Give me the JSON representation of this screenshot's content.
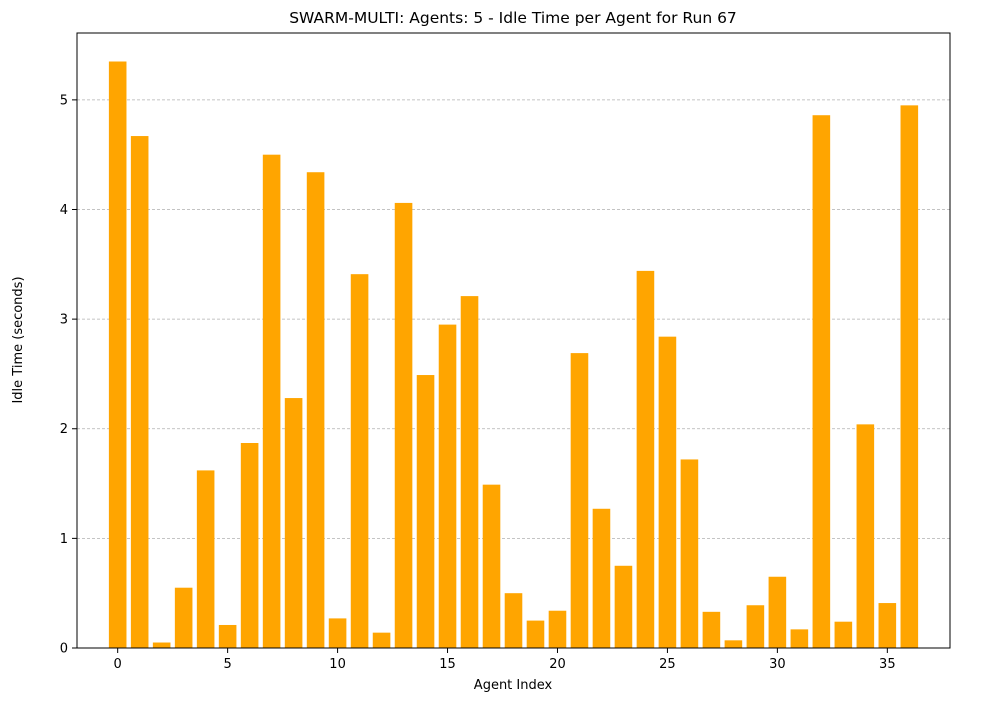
{
  "chart_data": {
    "type": "bar",
    "title": "SWARM-MULTI: Agents: 5 - Idle Time per Agent for Run 67",
    "xlabel": "Agent Index",
    "ylabel": "Idle Time (seconds)",
    "x_ticks": [
      0,
      5,
      10,
      15,
      20,
      25,
      30,
      35
    ],
    "y_ticks": [
      0,
      1,
      2,
      3,
      4,
      5
    ],
    "xlim": [
      -1.85,
      37.85
    ],
    "ylim": [
      0,
      5.61
    ],
    "grid": "y-axis dashed",
    "bar_color": "#ffa500",
    "categories": [
      0,
      1,
      2,
      3,
      4,
      5,
      6,
      7,
      8,
      9,
      10,
      11,
      12,
      13,
      14,
      15,
      16,
      17,
      18,
      19,
      20,
      21,
      22,
      23,
      24,
      25,
      26,
      27,
      28,
      29,
      30,
      31,
      32,
      33,
      34,
      35,
      36
    ],
    "values": [
      5.35,
      4.67,
      0.05,
      0.55,
      1.62,
      0.21,
      1.87,
      4.5,
      2.28,
      4.34,
      0.27,
      3.41,
      0.14,
      4.06,
      2.49,
      2.95,
      3.21,
      1.49,
      0.5,
      0.25,
      0.34,
      2.69,
      1.27,
      0.75,
      3.44,
      2.84,
      1.72,
      0.33,
      0.07,
      0.39,
      0.65,
      0.17,
      4.86,
      0.24,
      2.04,
      0.41,
      4.95
    ]
  }
}
